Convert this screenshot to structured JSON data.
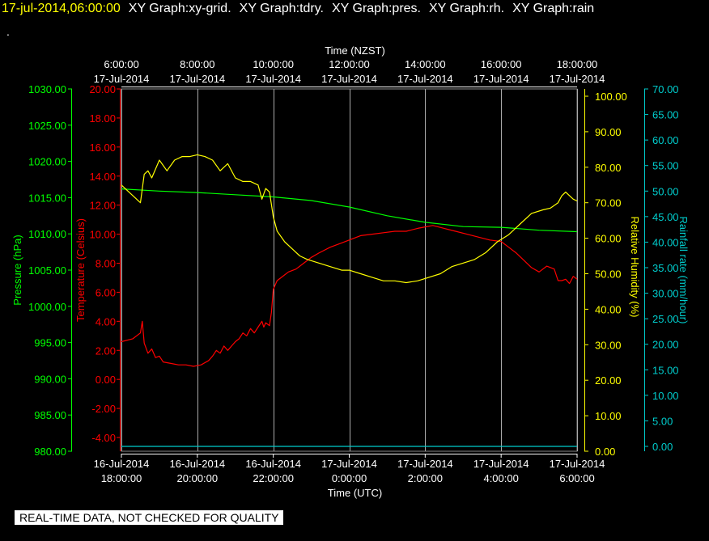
{
  "header": {
    "timestamp": "17-jul-2014,06:00:00",
    "graphs": [
      "XY Graph:xy-grid.",
      "XY Graph:tdry.",
      "XY Graph:pres.",
      "XY Graph:rh.",
      "XY Graph:rain"
    ],
    "dot": "."
  },
  "disclaimer": "REAL-TIME DATA, NOT CHECKED FOR QUALITY",
  "colors": {
    "temperature": "#ff0000",
    "pressure": "#00ff00",
    "humidity": "#ffff00",
    "rain": "#00cccc",
    "grid": "#ffffff",
    "background": "#000000"
  },
  "chart_data": {
    "type": "line",
    "grid": true,
    "x_top": {
      "label": "Time (NZST)",
      "ticks": [
        {
          "time": "6:00:00",
          "date": "17-Jul-2014"
        },
        {
          "time": "8:00:00",
          "date": "17-Jul-2014"
        },
        {
          "time": "10:00:00",
          "date": "17-Jul-2014"
        },
        {
          "time": "12:00:00",
          "date": "17-Jul-2014"
        },
        {
          "time": "14:00:00",
          "date": "17-Jul-2014"
        },
        {
          "time": "16:00:00",
          "date": "17-Jul-2014"
        },
        {
          "time": "18:00:00",
          "date": "17-Jul-2014"
        }
      ]
    },
    "x_bottom": {
      "label": "Time (UTC)",
      "ticks": [
        {
          "date": "16-Jul-2014",
          "time": "18:00:00"
        },
        {
          "date": "16-Jul-2014",
          "time": "20:00:00"
        },
        {
          "date": "16-Jul-2014",
          "time": "22:00:00"
        },
        {
          "date": "17-Jul-2014",
          "time": "0:00:00"
        },
        {
          "date": "17-Jul-2014",
          "time": "2:00:00"
        },
        {
          "date": "17-Jul-2014",
          "time": "4:00:00"
        },
        {
          "date": "17-Jul-2014",
          "time": "6:00:00"
        }
      ]
    },
    "xlim_hours_utc": [
      18,
      30
    ],
    "y_pressure": {
      "label": "Pressure (hPa)",
      "ylim": [
        980,
        1030
      ],
      "tick_labels": [
        "1030.00",
        "1025.00",
        "1020.00",
        "1015.00",
        "1010.00",
        "1005.00",
        "1000.00",
        "995.00",
        "990.00",
        "985.00",
        "980.00"
      ]
    },
    "y_temperature": {
      "label": "Temperature (Celsius)",
      "ylim": [
        -4.5,
        20
      ],
      "tick_labels": [
        "20.00",
        "18.00",
        "16.00",
        "14.00",
        "12.00",
        "10.00",
        "8.00",
        "6.00",
        "4.00",
        "2.00",
        "0.00",
        "-2.00",
        "-4.00"
      ]
    },
    "y_humidity": {
      "label": "Relative Humidity (%)",
      "ylim": [
        0,
        100
      ],
      "tick_labels": [
        "100.00",
        "90.00",
        "80.00",
        "70.00",
        "60.00",
        "50.00",
        "40.00",
        "30.00",
        "20.00",
        "10.00",
        "0.00"
      ]
    },
    "y_rain": {
      "label": "Rainfall rate (mm/hour)",
      "ylim": [
        0,
        70
      ],
      "tick_labels": [
        "70.00",
        "65.00",
        "60.00",
        "55.00",
        "50.00",
        "45.00",
        "40.00",
        "35.00",
        "30.00",
        "25.00",
        "20.00",
        "15.00",
        "10.00",
        "5.00",
        "0.00"
      ]
    },
    "series": [
      {
        "name": "Temperature (Celsius)",
        "axis": "temperature",
        "points": [
          [
            18.0,
            2.6
          ],
          [
            18.3,
            2.8
          ],
          [
            18.5,
            3.2
          ],
          [
            18.55,
            4.0
          ],
          [
            18.6,
            2.5
          ],
          [
            18.7,
            1.8
          ],
          [
            18.8,
            2.1
          ],
          [
            18.9,
            1.5
          ],
          [
            19.0,
            1.6
          ],
          [
            19.1,
            1.2
          ],
          [
            19.3,
            1.1
          ],
          [
            19.5,
            1.0
          ],
          [
            19.7,
            1.0
          ],
          [
            19.9,
            0.9
          ],
          [
            20.1,
            1.0
          ],
          [
            20.3,
            1.3
          ],
          [
            20.4,
            1.6
          ],
          [
            20.5,
            2.0
          ],
          [
            20.6,
            1.8
          ],
          [
            20.7,
            2.3
          ],
          [
            20.8,
            2.0
          ],
          [
            20.9,
            2.3
          ],
          [
            21.0,
            2.6
          ],
          [
            21.1,
            2.8
          ],
          [
            21.2,
            3.2
          ],
          [
            21.3,
            3.0
          ],
          [
            21.4,
            3.5
          ],
          [
            21.5,
            3.2
          ],
          [
            21.6,
            3.6
          ],
          [
            21.7,
            4.0
          ],
          [
            21.75,
            3.6
          ],
          [
            21.8,
            3.9
          ],
          [
            21.9,
            3.7
          ],
          [
            21.95,
            4.6
          ],
          [
            22.0,
            6.2
          ],
          [
            22.1,
            6.8
          ],
          [
            22.2,
            7.0
          ],
          [
            22.4,
            7.4
          ],
          [
            22.6,
            7.6
          ],
          [
            22.8,
            8.0
          ],
          [
            23.0,
            8.4
          ],
          [
            23.2,
            8.7
          ],
          [
            23.5,
            9.1
          ],
          [
            23.8,
            9.4
          ],
          [
            24.0,
            9.6
          ],
          [
            24.3,
            9.9
          ],
          [
            24.6,
            10.0
          ],
          [
            24.9,
            10.1
          ],
          [
            25.2,
            10.2
          ],
          [
            25.5,
            10.2
          ],
          [
            25.8,
            10.4
          ],
          [
            26.0,
            10.5
          ],
          [
            26.2,
            10.6
          ],
          [
            26.5,
            10.4
          ],
          [
            26.8,
            10.2
          ],
          [
            27.1,
            10.0
          ],
          [
            27.4,
            9.8
          ],
          [
            27.7,
            9.6
          ],
          [
            28.0,
            9.5
          ],
          [
            28.2,
            9.1
          ],
          [
            28.4,
            8.7
          ],
          [
            28.6,
            8.2
          ],
          [
            28.8,
            7.7
          ],
          [
            29.0,
            7.4
          ],
          [
            29.2,
            7.8
          ],
          [
            29.4,
            7.6
          ],
          [
            29.5,
            6.8
          ],
          [
            29.6,
            6.8
          ],
          [
            29.7,
            6.9
          ],
          [
            29.8,
            6.6
          ],
          [
            29.9,
            7.1
          ],
          [
            30.0,
            6.9
          ]
        ]
      },
      {
        "name": "Pressure (hPa)",
        "axis": "pressure",
        "points": [
          [
            18.0,
            1016.2
          ],
          [
            19.0,
            1015.9
          ],
          [
            20.0,
            1015.7
          ],
          [
            21.0,
            1015.4
          ],
          [
            22.0,
            1015.1
          ],
          [
            23.0,
            1014.6
          ],
          [
            24.0,
            1013.7
          ],
          [
            25.0,
            1012.5
          ],
          [
            26.0,
            1011.6
          ],
          [
            27.0,
            1011.0
          ],
          [
            28.0,
            1010.9
          ],
          [
            29.0,
            1010.5
          ],
          [
            30.0,
            1010.3
          ]
        ]
      },
      {
        "name": "Relative Humidity (%)",
        "axis": "humidity",
        "points": [
          [
            18.0,
            75.0
          ],
          [
            18.3,
            72.0
          ],
          [
            18.5,
            70.0
          ],
          [
            18.6,
            78.0
          ],
          [
            18.7,
            79.0
          ],
          [
            18.8,
            77.0
          ],
          [
            19.0,
            82.0
          ],
          [
            19.2,
            79.0
          ],
          [
            19.4,
            82.0
          ],
          [
            19.6,
            83.0
          ],
          [
            19.8,
            83.0
          ],
          [
            20.0,
            83.5
          ],
          [
            20.2,
            83.0
          ],
          [
            20.4,
            82.0
          ],
          [
            20.6,
            79.0
          ],
          [
            20.8,
            81.0
          ],
          [
            21.0,
            77.0
          ],
          [
            21.2,
            76.0
          ],
          [
            21.4,
            76.0
          ],
          [
            21.6,
            75.0
          ],
          [
            21.7,
            71.0
          ],
          [
            21.8,
            74.0
          ],
          [
            21.9,
            73.0
          ],
          [
            22.0,
            66.0
          ],
          [
            22.1,
            62.0
          ],
          [
            22.3,
            59.0
          ],
          [
            22.5,
            57.0
          ],
          [
            22.7,
            55.0
          ],
          [
            22.9,
            54.0
          ],
          [
            23.2,
            53.0
          ],
          [
            23.5,
            52.0
          ],
          [
            23.8,
            51.0
          ],
          [
            24.0,
            51.0
          ],
          [
            24.3,
            50.0
          ],
          [
            24.6,
            49.0
          ],
          [
            24.9,
            48.0
          ],
          [
            25.2,
            48.0
          ],
          [
            25.5,
            47.5
          ],
          [
            25.8,
            48.0
          ],
          [
            26.1,
            49.0
          ],
          [
            26.4,
            50.0
          ],
          [
            26.7,
            52.0
          ],
          [
            27.0,
            53.0
          ],
          [
            27.3,
            54.0
          ],
          [
            27.6,
            56.0
          ],
          [
            27.9,
            59.0
          ],
          [
            28.2,
            61.0
          ],
          [
            28.5,
            64.0
          ],
          [
            28.8,
            67.0
          ],
          [
            29.1,
            68.0
          ],
          [
            29.3,
            68.5
          ],
          [
            29.5,
            70.0
          ],
          [
            29.6,
            72.0
          ],
          [
            29.7,
            73.0
          ],
          [
            29.8,
            72.0
          ],
          [
            29.9,
            71.0
          ],
          [
            30.0,
            70.5
          ]
        ]
      },
      {
        "name": "Rainfall rate (mm/hour)",
        "axis": "rain",
        "points": [
          [
            18.0,
            0.0
          ],
          [
            30.0,
            0.0
          ]
        ]
      }
    ]
  }
}
